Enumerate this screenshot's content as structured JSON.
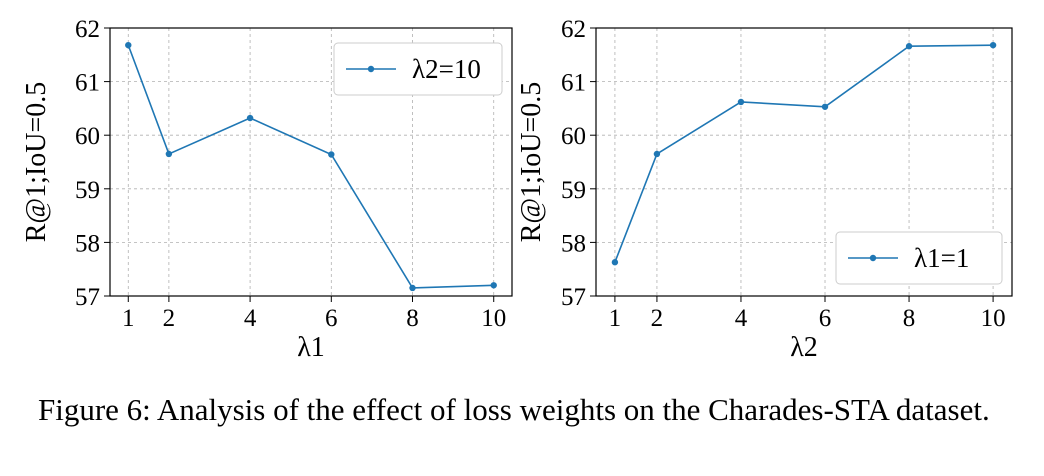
{
  "chart_data": [
    {
      "type": "line",
      "xlabel": "λ1",
      "ylabel": "R@1;IoU=0.5",
      "x": [
        1,
        2,
        4,
        6,
        8,
        10
      ],
      "xticks": [
        "1",
        "2",
        "4",
        "6",
        "8",
        "10"
      ],
      "yticks": [
        "57",
        "58",
        "59",
        "60",
        "61",
        "62"
      ],
      "ylim": [
        57,
        62
      ],
      "grid": true,
      "legend_position": "upper-right",
      "series": [
        {
          "name": "λ2=10",
          "color": "#1f77b4",
          "values": [
            61.68,
            59.65,
            60.32,
            59.64,
            57.15,
            57.2
          ]
        }
      ]
    },
    {
      "type": "line",
      "xlabel": "λ2",
      "ylabel": "R@1;IoU=0.5",
      "x": [
        1,
        2,
        4,
        6,
        8,
        10
      ],
      "xticks": [
        "1",
        "2",
        "4",
        "6",
        "8",
        "10"
      ],
      "yticks": [
        "57",
        "58",
        "59",
        "60",
        "61",
        "62"
      ],
      "ylim": [
        57,
        62
      ],
      "grid": true,
      "legend_position": "lower-right",
      "series": [
        {
          "name": "λ1=1",
          "color": "#1f77b4",
          "values": [
            57.63,
            59.65,
            60.62,
            60.53,
            61.66,
            61.68
          ]
        }
      ]
    }
  ],
  "caption": "Figure 6: Analysis of the effect of loss weights on the Charades-STA dataset."
}
